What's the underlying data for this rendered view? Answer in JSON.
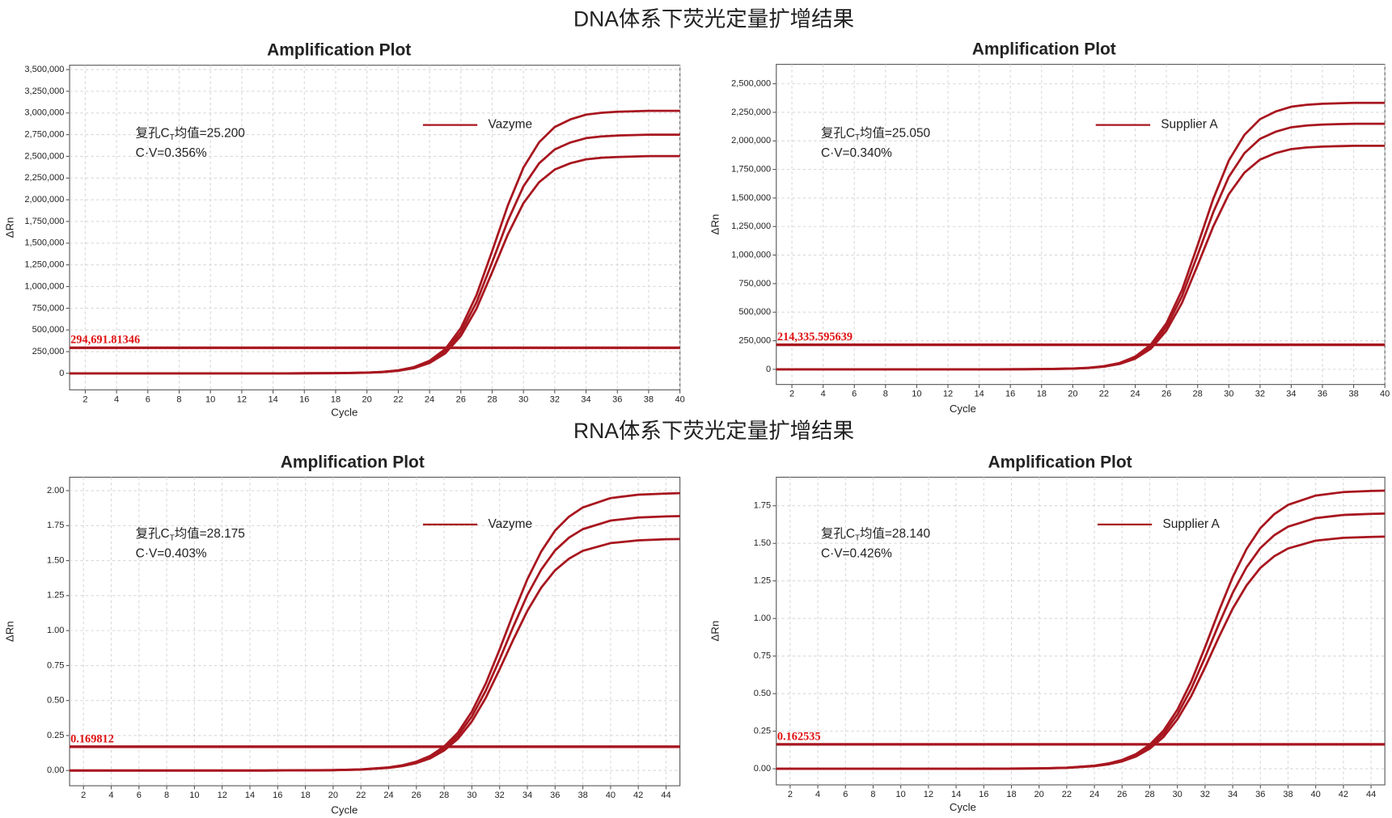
{
  "headings": [
    "DNA体系下荧光定量扩增结果",
    "RNA体系下荧光定量扩增结果"
  ],
  "chart_data": [
    {
      "type": "line",
      "title": "Amplification Plot",
      "xlabel": "Cycle",
      "ylabel": "ΔRn",
      "grid": true,
      "x": [
        1,
        5,
        10,
        15,
        18,
        20,
        21,
        22,
        23,
        24,
        25,
        26,
        27,
        28,
        29,
        30,
        31,
        32,
        33,
        34,
        35,
        36,
        38,
        40
      ],
      "xlim": [
        1,
        40
      ],
      "xticks": [
        2,
        4,
        6,
        8,
        10,
        12,
        14,
        16,
        18,
        20,
        22,
        24,
        26,
        28,
        30,
        32,
        34,
        36,
        38,
        40
      ],
      "ylim": [
        -190000,
        3550000
      ],
      "yticks": [
        0,
        {
          "value": 250000,
          "label": "250,000"
        },
        {
          "value": 500000,
          "label": "500,000"
        },
        {
          "value": 750000,
          "label": "750,000"
        },
        {
          "value": 1000000,
          "label": "1,000,000"
        },
        {
          "value": 1250000,
          "label": "1,250,000"
        },
        {
          "value": 1500000,
          "label": "1,500,000"
        },
        {
          "value": 1750000,
          "label": "1,750,000"
        },
        {
          "value": 2000000,
          "label": "2,000,000"
        },
        {
          "value": 2250000,
          "label": "2,250,000"
        },
        {
          "value": 2500000,
          "label": "2,500,000"
        },
        {
          "value": 2750000,
          "label": "2,750,000"
        },
        {
          "value": 3000000,
          "label": "3,000,000"
        },
        {
          "value": 3250000,
          "label": "3,250,000"
        },
        {
          "value": 3500000,
          "label": "3,500,000"
        }
      ],
      "threshold": {
        "value": 294691.81346,
        "label": "294,691.81346"
      },
      "annotations": {
        "ct": [
          "复孔C",
          "T",
          "均值=25.200"
        ],
        "cv": "C·V=0.356%"
      },
      "series": [
        {
          "name": "Vazyme",
          "color": "#a8161f",
          "values": [
            0,
            0,
            0,
            0,
            1900,
            7800,
            16000,
            32000,
            65000,
            131000,
            253000,
            474000,
            819000,
            1280000,
            1757000,
            2155000,
            2420000,
            2580000,
            2660000,
            2710000,
            2730000,
            2740000,
            2750000,
            2750000
          ]
        },
        {
          "color": "#a8161f",
          "values": [
            0,
            0,
            0,
            0,
            2100,
            8600,
            17600,
            35200,
            71500,
            144000,
            278000,
            521000,
            901000,
            1408000,
            1933000,
            2371000,
            2662000,
            2838000,
            2926000,
            2981000,
            3003000,
            3014000,
            3025000,
            3025000
          ]
        },
        {
          "color": "#a8161f",
          "values": [
            0,
            0,
            0,
            0,
            1700,
            7100,
            14600,
            29100,
            59200,
            119000,
            230000,
            431000,
            745000,
            1165000,
            1599000,
            1961000,
            2202000,
            2348000,
            2421000,
            2466000,
            2484000,
            2493000,
            2503000,
            2503000
          ]
        }
      ]
    },
    {
      "type": "line",
      "title": "Amplification Plot",
      "xlabel": "Cycle",
      "ylabel": "ΔRn",
      "grid": true,
      "x": [
        1,
        5,
        10,
        15,
        18,
        20,
        21,
        22,
        23,
        24,
        25,
        26,
        27,
        28,
        29,
        30,
        31,
        32,
        33,
        34,
        35,
        36,
        38,
        40
      ],
      "xlim": [
        1,
        40
      ],
      "xticks": [
        2,
        4,
        6,
        8,
        10,
        12,
        14,
        16,
        18,
        20,
        22,
        24,
        26,
        28,
        30,
        32,
        34,
        36,
        38,
        40
      ],
      "ylim": [
        -133000,
        2670000
      ],
      "yticks": [
        0,
        {
          "value": 250000,
          "label": "250,000"
        },
        {
          "value": 500000,
          "label": "500,000"
        },
        {
          "value": 750000,
          "label": "750,000"
        },
        {
          "value": 1000000,
          "label": "1,000,000"
        },
        {
          "value": 1250000,
          "label": "1,250,000"
        },
        {
          "value": 1500000,
          "label": "1,500,000"
        },
        {
          "value": 1750000,
          "label": "1,750,000"
        },
        {
          "value": 2000000,
          "label": "2,000,000"
        },
        {
          "value": 2250000,
          "label": "2,250,000"
        },
        {
          "value": 2500000,
          "label": "2,500,000"
        }
      ],
      "threshold": {
        "value": 214335.595639,
        "label": "214,335.595639"
      },
      "annotations": {
        "ct": [
          "复孔C",
          "T",
          "均值=25.050"
        ],
        "cv": "C·V=0.340%"
      },
      "series": [
        {
          "name": "Supplier A",
          "color": "#a8161f",
          "values": [
            0,
            0,
            0,
            0,
            1500,
            6100,
            12500,
            25000,
            51000,
            102000,
            198000,
            371000,
            640000,
            1001000,
            1374000,
            1685000,
            1892000,
            2018000,
            2080000,
            2119000,
            2135000,
            2143000,
            2150000,
            2150000
          ]
        },
        {
          "color": "#a8161f",
          "values": [
            0,
            0,
            0,
            0,
            1600,
            6600,
            13600,
            27100,
            55300,
            111000,
            215000,
            403000,
            694000,
            1086000,
            1491000,
            1828000,
            2053000,
            2190000,
            2257000,
            2299000,
            2316000,
            2325000,
            2333000,
            2333000
          ]
        },
        {
          "color": "#a8161f",
          "values": [
            0,
            0,
            0,
            0,
            1400,
            5600,
            11400,
            22800,
            46400,
            92800,
            180000,
            338000,
            582000,
            911000,
            1250000,
            1533000,
            1722000,
            1836000,
            1893000,
            1928000,
            1943000,
            1950000,
            1957000,
            1957000
          ]
        }
      ]
    },
    {
      "type": "line",
      "title": "Amplification Plot",
      "xlabel": "Cycle",
      "ylabel": "ΔRn",
      "grid": true,
      "x": [
        1,
        5,
        10,
        15,
        20,
        22,
        24,
        25,
        26,
        27,
        28,
        29,
        30,
        31,
        32,
        33,
        34,
        35,
        36,
        37,
        38,
        40,
        42,
        44,
        45
      ],
      "xlim": [
        1,
        45
      ],
      "xticks": [
        2,
        4,
        6,
        8,
        10,
        12,
        14,
        16,
        18,
        20,
        22,
        24,
        26,
        28,
        30,
        32,
        34,
        36,
        38,
        40,
        42,
        44
      ],
      "ylim": [
        -0.109,
        2.096
      ],
      "yticks": [
        {
          "value": 0,
          "label": "0.00"
        },
        0.25,
        {
          "value": 0.5,
          "label": "0.50"
        },
        0.75,
        {
          "value": 1,
          "label": "1.00"
        },
        1.25,
        {
          "value": 1.5,
          "label": "1.50"
        },
        1.75,
        {
          "value": 2,
          "label": "2.00"
        }
      ],
      "threshold": {
        "value": 0.169812,
        "label": "0.169812"
      },
      "annotations": {
        "ct": [
          "复孔C",
          "T",
          "均值=28.175"
        ],
        "cv": "C·V=0.403%"
      },
      "series": [
        {
          "name": "Vazyme",
          "color": "#a8161f",
          "values": [
            0,
            0,
            0,
            0,
            0.0025,
            0.0073,
            0.0207,
            0.0347,
            0.0578,
            0.0958,
            0.157,
            0.249,
            0.386,
            0.57,
            0.794,
            1.031,
            1.254,
            1.436,
            1.573,
            1.664,
            1.725,
            1.786,
            1.808,
            1.816,
            1.818
          ]
        },
        {
          "color": "#a8161f",
          "values": [
            0,
            0,
            0,
            0,
            0.0027,
            0.008,
            0.0226,
            0.0378,
            0.063,
            0.1044,
            0.171,
            0.271,
            0.421,
            0.621,
            0.865,
            1.124,
            1.367,
            1.565,
            1.715,
            1.814,
            1.88,
            1.947,
            1.971,
            1.979,
            1.982
          ]
        },
        {
          "color": "#a8161f",
          "values": [
            0,
            0,
            0,
            0,
            0.0023,
            0.0066,
            0.0188,
            0.0316,
            0.0526,
            0.0872,
            0.143,
            0.227,
            0.351,
            0.519,
            0.723,
            0.938,
            1.141,
            1.307,
            1.431,
            1.514,
            1.57,
            1.625,
            1.645,
            1.653,
            1.654
          ]
        }
      ]
    },
    {
      "type": "line",
      "title": "Amplification Plot",
      "xlabel": "Cycle",
      "ylabel": "ΔRn",
      "grid": true,
      "x": [
        1,
        5,
        10,
        15,
        20,
        22,
        24,
        25,
        26,
        27,
        28,
        29,
        30,
        31,
        32,
        33,
        34,
        35,
        36,
        37,
        38,
        40,
        42,
        44,
        45
      ],
      "xlim": [
        1,
        45
      ],
      "xticks": [
        2,
        4,
        6,
        8,
        10,
        12,
        14,
        16,
        18,
        20,
        22,
        24,
        26,
        28,
        30,
        32,
        34,
        36,
        38,
        40,
        42,
        44
      ],
      "ylim": [
        -0.107,
        1.94
      ],
      "yticks": [
        {
          "value": 0,
          "label": "0.00"
        },
        0.25,
        {
          "value": 0.5,
          "label": "0.50"
        },
        0.75,
        {
          "value": 1,
          "label": "1.00"
        },
        1.25,
        {
          "value": 1.5,
          "label": "1.50"
        },
        1.75
      ],
      "threshold": {
        "value": 0.162535,
        "label": "0.162535"
      },
      "annotations": {
        "ct": [
          "复孔C",
          "T",
          "均值=28.140"
        ],
        "cv": "C·V=0.426%"
      },
      "series": [
        {
          "name": "Supplier A",
          "color": "#a8161f",
          "values": [
            0,
            0,
            0,
            0,
            0.0023,
            0.0068,
            0.0193,
            0.0324,
            0.054,
            0.0895,
            0.147,
            0.233,
            0.361,
            0.532,
            0.742,
            0.963,
            1.171,
            1.341,
            1.469,
            1.554,
            1.611,
            1.668,
            1.689,
            1.696,
            1.698
          ]
        },
        {
          "color": "#a8161f",
          "values": [
            0,
            0,
            0,
            0,
            0.0025,
            0.0074,
            0.021,
            0.0353,
            0.0589,
            0.0976,
            0.16,
            0.254,
            0.393,
            0.58,
            0.809,
            1.05,
            1.276,
            1.462,
            1.601,
            1.694,
            1.756,
            1.818,
            1.841,
            1.849,
            1.851
          ]
        },
        {
          "color": "#a8161f",
          "values": [
            0,
            0,
            0,
            0,
            0.0021,
            0.0062,
            0.0176,
            0.0295,
            0.0491,
            0.0814,
            0.134,
            0.212,
            0.329,
            0.484,
            0.675,
            0.876,
            1.066,
            1.22,
            1.337,
            1.414,
            1.466,
            1.518,
            1.537,
            1.543,
            1.545
          ]
        }
      ]
    }
  ]
}
